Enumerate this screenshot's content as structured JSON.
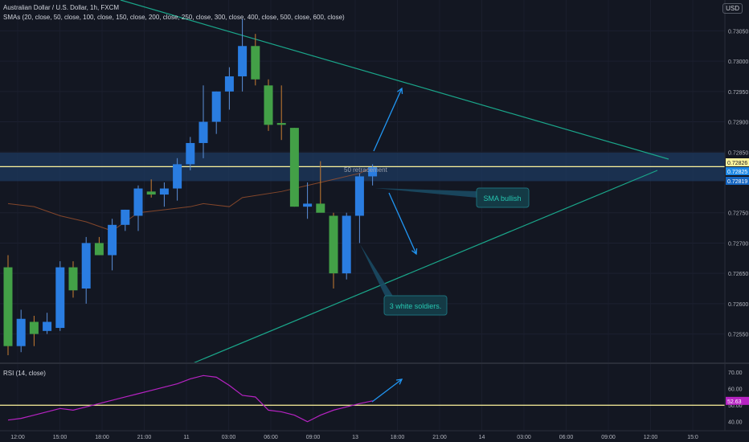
{
  "header": {
    "symbol_line": "Australian Dollar / U.S. Dollar, 1h, FXCM",
    "sma_line": "SMAs (20, close, 50, close, 100, close, 150, close, 200, close, 250, close, 300, close, 400, close, 500, close, 600, close)",
    "currency": "USD"
  },
  "rsi_header": "RSI (14, close)",
  "annotations": {
    "retracement": "50 retracement",
    "sma_bullish": "SMA bullish",
    "soldiers": "3 white soldiers."
  },
  "colors": {
    "background": "#131722",
    "bull": "#2a7de1",
    "bull_green": "#43a047",
    "bear": "#2e7d32",
    "trendline": "#1aa68a",
    "zone": "#1e3a5f",
    "rsi": "#b623c2",
    "arrow": "#2196f3",
    "level": "#fff59d"
  },
  "chart_data": {
    "type": "candlestick",
    "symbol": "AUDUSD",
    "timeframe": "1h",
    "y_ticks": [
      "0.73050",
      "0.73000",
      "0.72950",
      "0.72900",
      "0.72850",
      "0.72750",
      "0.72700",
      "0.72650",
      "0.72600",
      "0.72550"
    ],
    "x_ticks": [
      "12:00",
      "15:00",
      "18:00",
      "21:00",
      "11",
      "03:00",
      "06:00",
      "09:00",
      "13",
      "18:00",
      "21:00",
      "14",
      "03:00",
      "06:00",
      "09:00",
      "12:00",
      "15:0"
    ],
    "price_labels": [
      "0.72826",
      "0.72825",
      "0.72819"
    ],
    "ylim": [
      0.72515,
      0.73085
    ],
    "candles": [
      {
        "o": 0.7266,
        "h": 0.7268,
        "l": 0.72515,
        "c": 0.7253
      },
      {
        "o": 0.7253,
        "h": 0.7259,
        "l": 0.7252,
        "c": 0.72575
      },
      {
        "o": 0.7257,
        "h": 0.7258,
        "l": 0.7253,
        "c": 0.7255
      },
      {
        "o": 0.72555,
        "h": 0.72585,
        "l": 0.7255,
        "c": 0.7257
      },
      {
        "o": 0.7256,
        "h": 0.7267,
        "l": 0.72555,
        "c": 0.7266
      },
      {
        "o": 0.7266,
        "h": 0.7267,
        "l": 0.7261,
        "c": 0.72622
      },
      {
        "o": 0.72625,
        "h": 0.7271,
        "l": 0.726,
        "c": 0.727
      },
      {
        "o": 0.727,
        "h": 0.7271,
        "l": 0.7268,
        "c": 0.7268
      },
      {
        "o": 0.7268,
        "h": 0.7274,
        "l": 0.72655,
        "c": 0.7273
      },
      {
        "o": 0.7273,
        "h": 0.72755,
        "l": 0.7272,
        "c": 0.72755
      },
      {
        "o": 0.72745,
        "h": 0.72795,
        "l": 0.7272,
        "c": 0.7279
      },
      {
        "o": 0.72785,
        "h": 0.72805,
        "l": 0.72775,
        "c": 0.7278
      },
      {
        "o": 0.7278,
        "h": 0.728,
        "l": 0.7276,
        "c": 0.7279
      },
      {
        "o": 0.7279,
        "h": 0.7284,
        "l": 0.7277,
        "c": 0.7283
      },
      {
        "o": 0.7283,
        "h": 0.72875,
        "l": 0.7282,
        "c": 0.72865
      },
      {
        "o": 0.72865,
        "h": 0.7296,
        "l": 0.7284,
        "c": 0.729
      },
      {
        "o": 0.729,
        "h": 0.7295,
        "l": 0.7288,
        "c": 0.7295
      },
      {
        "o": 0.7295,
        "h": 0.7299,
        "l": 0.7292,
        "c": 0.72975
      },
      {
        "o": 0.72975,
        "h": 0.7307,
        "l": 0.7295,
        "c": 0.73025
      },
      {
        "o": 0.73025,
        "h": 0.73045,
        "l": 0.7296,
        "c": 0.7297
      },
      {
        "o": 0.7296,
        "h": 0.7297,
        "l": 0.72885,
        "c": 0.72895
      },
      {
        "o": 0.72898,
        "h": 0.7296,
        "l": 0.7287,
        "c": 0.72895
      },
      {
        "o": 0.7289,
        "h": 0.7289,
        "l": 0.7276,
        "c": 0.7276
      },
      {
        "o": 0.7276,
        "h": 0.728,
        "l": 0.7274,
        "c": 0.72765
      },
      {
        "o": 0.72765,
        "h": 0.72835,
        "l": 0.72755,
        "c": 0.7275
      },
      {
        "o": 0.72745,
        "h": 0.7275,
        "l": 0.72625,
        "c": 0.7265
      },
      {
        "o": 0.7265,
        "h": 0.7275,
        "l": 0.7264,
        "c": 0.72745
      },
      {
        "o": 0.72745,
        "h": 0.72815,
        "l": 0.727,
        "c": 0.7281
      },
      {
        "o": 0.7281,
        "h": 0.7283,
        "l": 0.72795,
        "c": 0.72825
      }
    ],
    "sma": [
      [
        0,
        0.72765
      ],
      [
        2,
        0.7276
      ],
      [
        4,
        0.72745
      ],
      [
        6,
        0.72735
      ],
      [
        8,
        0.7272
      ],
      [
        10,
        0.7275
      ],
      [
        12,
        0.72755
      ],
      [
        14,
        0.7276
      ],
      [
        15,
        0.72765
      ],
      [
        17,
        0.7276
      ],
      [
        18,
        0.72775
      ],
      [
        21,
        0.72785
      ],
      [
        23,
        0.72795
      ],
      [
        25,
        0.72805
      ],
      [
        27,
        0.72815
      ],
      [
        28,
        0.72825
      ]
    ],
    "zone": [
      0.72826,
      0.72849
    ],
    "level": 0.72826,
    "rsi": {
      "ylim": [
        35,
        74
      ],
      "y_ticks": [
        "70.00",
        "60.00",
        "50.00",
        "40.00"
      ],
      "level": 50,
      "current": "52.63",
      "values": [
        41,
        42,
        44,
        46,
        48,
        47,
        49,
        51,
        53,
        55,
        57,
        59,
        61,
        63,
        66,
        68,
        67,
        62,
        56,
        55,
        47,
        46,
        44,
        40,
        44,
        47,
        49,
        51,
        52.63
      ]
    }
  }
}
